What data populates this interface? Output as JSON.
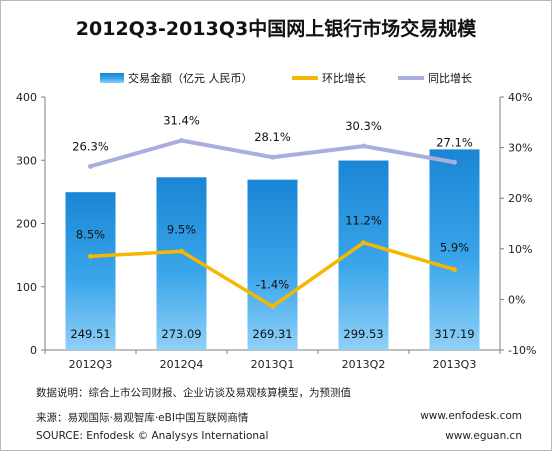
{
  "chart_data": {
    "type": "bar",
    "title": "2012Q3-2013Q3中国网上银行市场交易规模",
    "categories": [
      "2012Q3",
      "2012Q4",
      "2013Q1",
      "2013Q2",
      "2013Q3"
    ],
    "series": [
      {
        "name": "交易金额（亿元 人民币）",
        "type": "bar",
        "axis": "left",
        "values": [
          249.51,
          273.09,
          269.31,
          299.53,
          317.19
        ],
        "labels": [
          "249.51",
          "273.09",
          "269.31",
          "299.53",
          "317.19"
        ]
      },
      {
        "name": "环比增长",
        "type": "line",
        "axis": "right",
        "values": [
          8.5,
          9.5,
          -1.4,
          11.2,
          5.9
        ],
        "labels": [
          "8.5%",
          "9.5%",
          "-1.4%",
          "11.2%",
          "5.9%"
        ]
      },
      {
        "name": "同比增长",
        "type": "line",
        "axis": "right",
        "values": [
          26.3,
          31.4,
          28.1,
          30.3,
          27.1
        ],
        "labels": [
          "26.3%",
          "31.4%",
          "28.1%",
          "30.3%",
          "27.1%"
        ]
      }
    ],
    "y_left": {
      "min": 0,
      "max": 400,
      "ticks": [
        "0",
        "100",
        "200",
        "300",
        "400"
      ]
    },
    "y_right": {
      "min": -10,
      "max": 40,
      "ticks": [
        "-10%",
        "0%",
        "10%",
        "20%",
        "30%",
        "40%"
      ]
    },
    "legend": "top",
    "grid": false
  },
  "colors": {
    "bar": "#1f8fd9",
    "mom_line": "#f5b800",
    "yoy_line": "#a9aede"
  },
  "footer": {
    "note": "数据说明：综合上市公司财报、企业访谈及易观核算模型，为预测值",
    "source_cn": "来源：易观国际·易观智库·eBI中国互联网商情",
    "source_en": "SOURCE: Enfodesk © Analysys International",
    "url1": "www.enfodesk.com",
    "url2": "www.eguan.cn"
  }
}
